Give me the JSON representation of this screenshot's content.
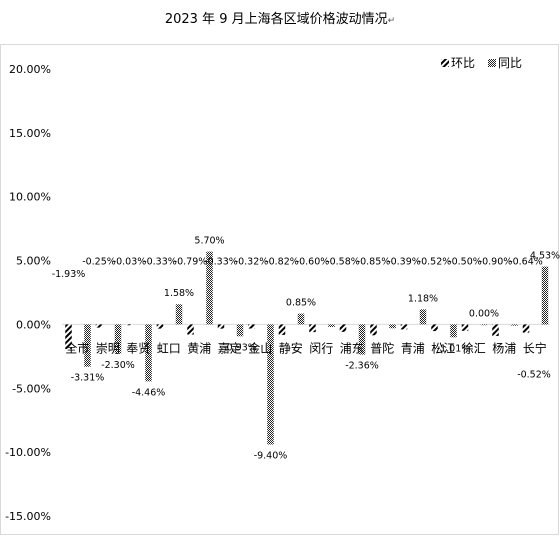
{
  "chart_data": {
    "type": "bar",
    "title": "2023 年 9 月上海各区域价格波动情况",
    "title_mark": "↵",
    "xlabel": "",
    "ylabel": "",
    "ylim": [
      -15,
      20
    ],
    "yticks": [
      "20.00%",
      "15.00%",
      "10.00%",
      "5.00%",
      "0.00%",
      "-5.00%",
      "-10.00%",
      "-15.00%"
    ],
    "grid": false,
    "legend_position": "top-right",
    "categories": [
      "全市",
      "崇明",
      "奉贤",
      "虹口",
      "黄浦",
      "嘉定",
      "金山",
      "静安",
      "闵行",
      "浦东",
      "普陀",
      "青浦",
      "松江",
      "徐汇",
      "杨浦",
      "长宁"
    ],
    "series": [
      {
        "name": "环比",
        "pattern": "diagonal-stripes",
        "values": [
          -1.93,
          -0.25,
          -0.03,
          -0.33,
          -0.79,
          -0.33,
          -0.32,
          -0.82,
          -0.6,
          -0.58,
          -0.85,
          -0.39,
          -0.52,
          -0.5,
          -0.9,
          -0.64
        ],
        "labels": [
          "-1.93%",
          "-0.25%",
          "-0.03%",
          "-0.33%",
          "-0.79%",
          "-0.33%",
          "-0.32%",
          "-0.82%",
          "-0.60%",
          "-0.58%",
          "-0.85%",
          "-0.39%",
          "-0.52%",
          "-0.50%",
          "-0.90%",
          "-0.64%"
        ]
      },
      {
        "name": "同比",
        "pattern": "checker",
        "values": [
          -3.31,
          -2.3,
          -4.46,
          1.58,
          5.7,
          -0.93,
          -9.4,
          0.85,
          -0.2,
          -2.36,
          -0.3,
          1.18,
          -1.01,
          0.0,
          -0.1,
          4.53
        ],
        "labels": [
          "-3.31%",
          "-2.30%",
          "-4.46%",
          "1.58%",
          "5.70%",
          "-0.93%",
          "-9.40%",
          "0.85%",
          "",
          "-2.36%",
          "",
          "1.18%",
          "-1.01%",
          "0.00%",
          "",
          "4.53%"
        ]
      }
    ],
    "extra_labels": [
      "-0.52%"
    ],
    "colors": {
      "text": "#000000",
      "bar": "#000000",
      "axis": "#d9d9d9"
    }
  }
}
